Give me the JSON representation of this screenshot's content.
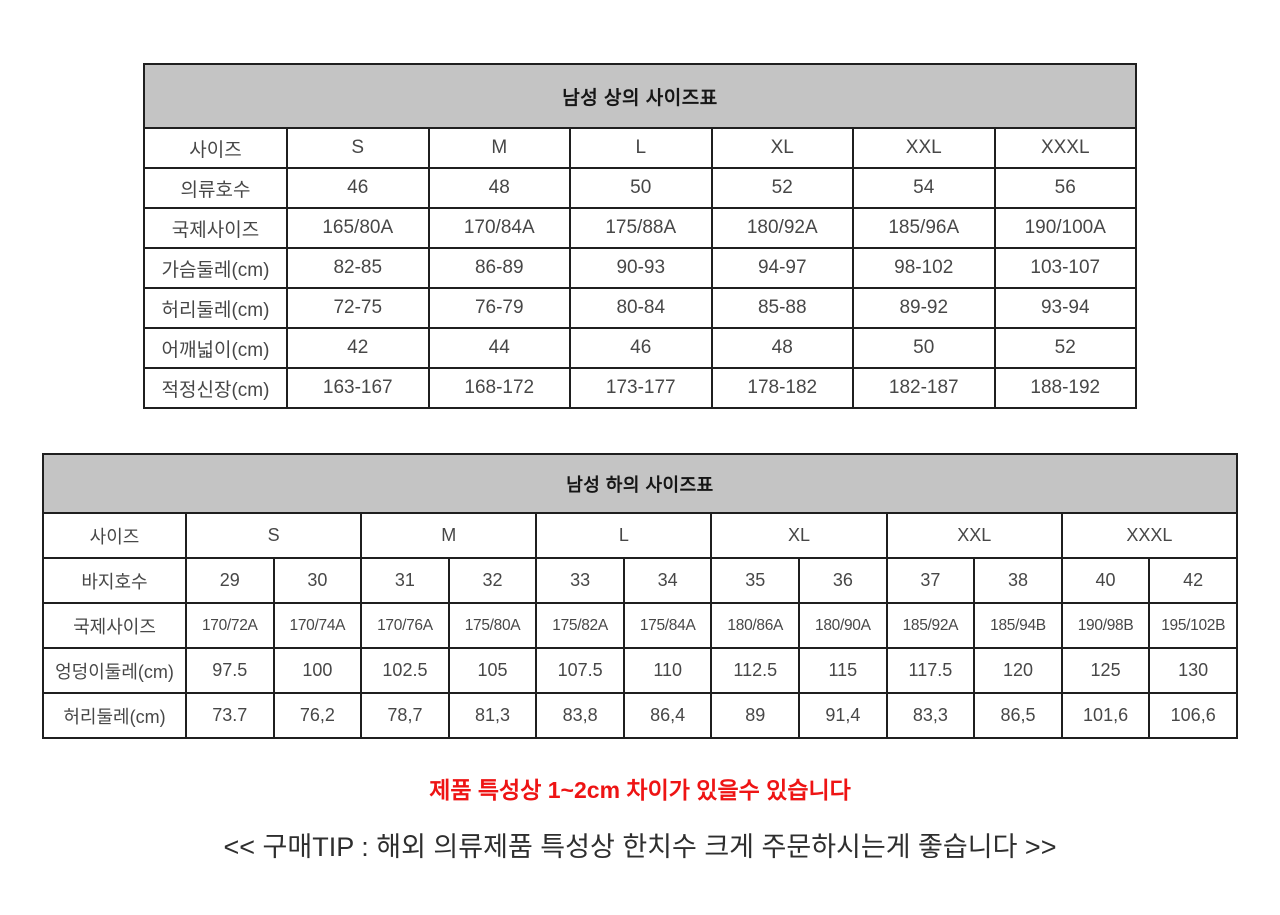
{
  "tables": [
    {
      "title": "남성 상의 사이즈표",
      "value_colspan": 1,
      "rows": [
        {
          "label": "사이즈",
          "values": [
            "S",
            "M",
            "L",
            "XL",
            "XXL",
            "XXXL"
          ]
        },
        {
          "label": "의류호수",
          "values": [
            "46",
            "48",
            "50",
            "52",
            "54",
            "56"
          ]
        },
        {
          "label": "국제사이즈",
          "values": [
            "165/80A",
            "170/84A",
            "175/88A",
            "180/92A",
            "185/96A",
            "190/100A"
          ]
        },
        {
          "label": "가슴둘레(cm)",
          "values": [
            "82-85",
            "86-89",
            "90-93",
            "94-97",
            "98-102",
            "103-107"
          ]
        },
        {
          "label": "허리둘레(cm)",
          "values": [
            "72-75",
            "76-79",
            "80-84",
            "85-88",
            "89-92",
            "93-94"
          ]
        },
        {
          "label": "어깨넓이(cm)",
          "values": [
            "42",
            "44",
            "46",
            "48",
            "50",
            "52"
          ]
        },
        {
          "label": "적정신장(cm)",
          "values": [
            "163-167",
            "168-172",
            "173-177",
            "178-182",
            "182-187",
            "188-192"
          ]
        }
      ]
    },
    {
      "title": "남성 하의 사이즈표",
      "value_colspan": 1,
      "rows": [
        {
          "label": "사이즈",
          "colspan": 2,
          "values": [
            "S",
            "M",
            "L",
            "XL",
            "XXL",
            "XXXL"
          ]
        },
        {
          "label": "바지호수",
          "values": [
            "29",
            "30",
            "31",
            "32",
            "33",
            "34",
            "35",
            "36",
            "37",
            "38",
            "40",
            "42"
          ]
        },
        {
          "label": "국제사이즈",
          "small": true,
          "values": [
            "170/72A",
            "170/74A",
            "170/76A",
            "175/80A",
            "175/82A",
            "175/84A",
            "180/86A",
            "180/90A",
            "185/92A",
            "185/94B",
            "190/98B",
            "195/102B"
          ]
        },
        {
          "label": "엉덩이둘레(cm)",
          "values": [
            "97.5",
            "100",
            "102.5",
            "105",
            "107.5",
            "110",
            "112.5",
            "115",
            "117.5",
            "120",
            "125",
            "130"
          ]
        },
        {
          "label": "허리둘레(cm)",
          "values": [
            "73.7",
            "76,2",
            "78,7",
            "81,3",
            "83,8",
            "86,4",
            "89",
            "91,4",
            "83,3",
            "86,5",
            "101,6",
            "106,6"
          ]
        }
      ]
    }
  ],
  "notes": {
    "warning": "제품 특성상 1~2cm 차이가 있을수 있습니다",
    "tip": "<< 구매TIP : 해외 의류제품 특성상 한치수 크게 주문하시는게 좋습니다 >>"
  },
  "colors": {
    "header_bg": "#c4c4c4",
    "border": "#1f1f1f",
    "warning_text": "#ee1414",
    "body_text": "#474747"
  }
}
